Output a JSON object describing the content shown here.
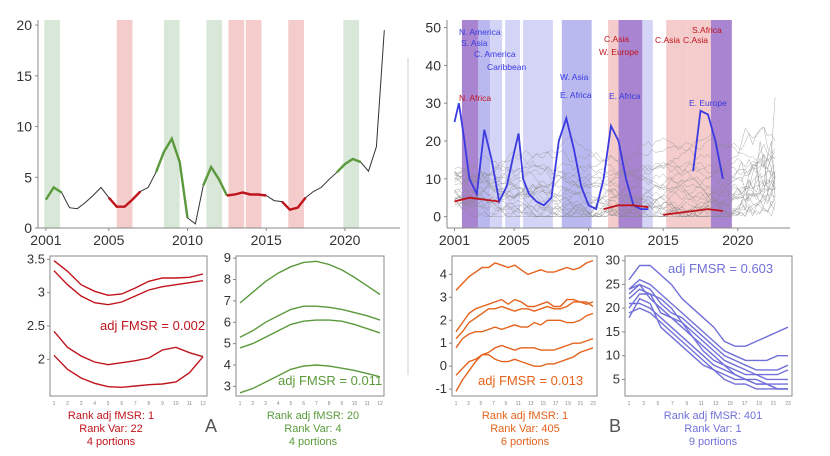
{
  "colors": {
    "red": "#c0141c",
    "green": "#5a9a3c",
    "orange": "#e4621b",
    "blue": "#3a3ae0",
    "lavender": "#7070d8",
    "gray": "#555555",
    "greenband": "#d9e7d9",
    "redband": "#f5cccc",
    "blueband1": "#b9b9f0",
    "blueband2": "#d4d4f6",
    "purpleband": "#9a6fc8"
  },
  "panel_letters": {
    "a": "A",
    "b": "B"
  },
  "captions": {
    "a1": {
      "rank": "Rank adj fMSR: 1",
      "var": "Rank Var: 22",
      "portions": "4 portions"
    },
    "a2": {
      "rank": "Rank adj fMSR: 20",
      "var": "Rank Var: 4",
      "portions": "4 portions"
    },
    "b1": {
      "rank": "Rank adj fMSR: 1",
      "var": "Rank Var: 405",
      "portions": "6 portions"
    },
    "b2": {
      "rank": "Rank adj fMSR: 401",
      "var": "Rank Var: 1",
      "portions": "9 portions"
    }
  },
  "chart_data": [
    {
      "id": "a-top",
      "type": "line",
      "xticks": [
        "2001",
        "2005",
        "2010",
        "2015",
        "2020"
      ],
      "yticks": [
        "0",
        "5",
        "10",
        "15",
        "20"
      ],
      "xlim": [
        2000.5,
        2023.5
      ],
      "ylim": [
        0,
        20.5
      ],
      "green_bands": [
        [
          2000.9,
          2001.9
        ],
        [
          2008.5,
          2009.5
        ],
        [
          2011.2,
          2012.2
        ],
        [
          2019.9,
          2020.9
        ]
      ],
      "red_bands": [
        [
          2005.5,
          2006.5
        ],
        [
          2012.6,
          2013.6
        ],
        [
          2013.7,
          2014.7
        ],
        [
          2016.4,
          2017.4
        ]
      ],
      "series": [
        {
          "x": [
            2001,
            2001.5,
            2002,
            2002.5,
            2003,
            2003.5,
            2004,
            2004.5,
            2005,
            2005.5,
            2006,
            2006.5,
            2007,
            2007.5,
            2008,
            2008.5,
            2009,
            2009.5,
            2010,
            2010.5,
            2011,
            2011.5,
            2012,
            2012.5,
            2013,
            2013.5,
            2014,
            2014.5,
            2015,
            2015.5,
            2016,
            2016.5,
            2017,
            2017.5,
            2018,
            2018.5,
            2019,
            2019.5,
            2020,
            2020.5,
            2021,
            2021.5,
            2022,
            2022.5
          ],
          "y": [
            2.8,
            4.0,
            3.5,
            2.0,
            1.9,
            2.5,
            3.2,
            4.0,
            3.0,
            2.1,
            2.1,
            2.8,
            3.6,
            4.0,
            5.5,
            7.5,
            8.8,
            6.5,
            1.0,
            0.4,
            4.2,
            6.0,
            4.8,
            3.2,
            3.3,
            3.5,
            3.3,
            3.3,
            3.2,
            2.7,
            2.6,
            1.8,
            2.0,
            3.0,
            3.6,
            4.0,
            4.8,
            5.5,
            6.3,
            6.8,
            6.5,
            5.6,
            8.0,
            19.5
          ]
        }
      ]
    },
    {
      "id": "a-left",
      "type": "line",
      "xticks": [
        "1",
        "2",
        "3",
        "4",
        "5",
        "6",
        "7",
        "8",
        "9",
        "10",
        "11",
        "12"
      ],
      "yticks": [
        "2",
        "2.5",
        "3",
        "3.5"
      ],
      "ylim": [
        1.45,
        3.55
      ],
      "annotation": "adj FMSR = 0.002",
      "series": [
        {
          "values": [
            3.48,
            3.32,
            3.12,
            3.02,
            2.96,
            2.98,
            3.07,
            3.17,
            3.22,
            3.22,
            3.23,
            3.28
          ]
        },
        {
          "values": [
            3.33,
            3.12,
            2.95,
            2.85,
            2.82,
            2.86,
            2.95,
            3.04,
            3.09,
            3.12,
            3.15,
            3.18
          ]
        },
        {
          "values": [
            2.42,
            2.18,
            2.05,
            1.96,
            1.92,
            1.95,
            1.98,
            2.02,
            2.14,
            2.18,
            2.1,
            2.04
          ]
        },
        {
          "values": [
            2.06,
            1.85,
            1.72,
            1.64,
            1.59,
            1.58,
            1.6,
            1.62,
            1.63,
            1.66,
            1.8,
            2.04
          ]
        }
      ]
    },
    {
      "id": "a-right",
      "type": "line",
      "xticks": [
        "1",
        "2",
        "3",
        "4",
        "5",
        "6",
        "7",
        "8",
        "9",
        "10",
        "11",
        "12"
      ],
      "yticks": [
        "3",
        "4",
        "5",
        "6",
        "7",
        "8",
        "9"
      ],
      "ylim": [
        2.55,
        9.1
      ],
      "annotation": "adj FMSR = 0.011",
      "series": [
        {
          "values": [
            6.9,
            7.4,
            7.9,
            8.3,
            8.6,
            8.8,
            8.85,
            8.7,
            8.45,
            8.1,
            7.7,
            7.3
          ]
        },
        {
          "values": [
            5.3,
            5.6,
            6.0,
            6.3,
            6.6,
            6.75,
            6.75,
            6.7,
            6.6,
            6.45,
            6.3,
            6.1
          ]
        },
        {
          "values": [
            4.8,
            5.0,
            5.3,
            5.6,
            5.9,
            6.05,
            6.1,
            6.1,
            6.05,
            5.9,
            5.7,
            5.5
          ]
        },
        {
          "values": [
            2.7,
            2.9,
            3.2,
            3.5,
            3.8,
            3.95,
            4.0,
            3.95,
            3.85,
            3.75,
            3.6,
            3.45
          ]
        }
      ]
    },
    {
      "id": "b-top",
      "type": "line",
      "xticks": [
        "2001",
        "2005",
        "2010",
        "2015",
        "2020"
      ],
      "yticks": [
        "0",
        "10",
        "20",
        "30",
        "40",
        "50"
      ],
      "xlim": [
        2000.5,
        2023.5
      ],
      "ylim": [
        -3,
        52
      ],
      "region_labels": [
        {
          "text": "N. America",
          "color": "blue"
        },
        {
          "text": "S. Asia",
          "color": "blue"
        },
        {
          "text": "C. America",
          "color": "blue"
        },
        {
          "text": "Caribbean",
          "color": "blue"
        },
        {
          "text": "N. Africa",
          "color": "red"
        },
        {
          "text": "W. Asia",
          "color": "blue"
        },
        {
          "text": "E. Africa",
          "color": "blue"
        },
        {
          "text": "C.Asia",
          "color": "red"
        },
        {
          "text": "W. Europe",
          "color": "red"
        },
        {
          "text": "E. Africa",
          "color": "blue"
        },
        {
          "text": "C.Asia",
          "color": "red"
        },
        {
          "text": "C.Asia",
          "color": "red"
        },
        {
          "text": "S.Africa",
          "color": "red"
        },
        {
          "text": "E. Europe",
          "color": "blue"
        }
      ],
      "series": [
        {
          "name": "blue",
          "x": [
            2001,
            2001.3,
            2001.6,
            2002,
            2002.5,
            2003,
            2003.5,
            2004,
            2004.5,
            2005,
            2005.3,
            2005.6,
            2006,
            2006.5,
            2007,
            2007.5,
            2008,
            2008.5,
            2009,
            2009.5,
            2010,
            2010.5,
            2011,
            2011.5,
            2012,
            2012.5,
            2013,
            2013.5,
            2014
          ],
          "y": [
            25,
            30,
            22,
            10,
            6,
            23,
            15,
            4,
            8,
            17,
            22,
            10,
            6,
            4,
            3,
            5,
            20,
            26,
            18,
            8,
            3,
            2,
            10,
            24,
            20,
            10,
            3,
            2,
            2
          ]
        },
        {
          "name": "blue",
          "x": [
            2017,
            2017.5,
            2018,
            2018.5,
            2019
          ],
          "y": [
            12,
            28,
            27,
            20,
            10
          ]
        },
        {
          "name": "red",
          "x": [
            2001,
            2002,
            2003,
            2004
          ],
          "y": [
            4,
            5,
            4.5,
            4
          ]
        },
        {
          "name": "red",
          "x": [
            2011,
            2012,
            2013,
            2014
          ],
          "y": [
            2,
            3,
            3,
            2.5
          ]
        },
        {
          "name": "red",
          "x": [
            2015,
            2016,
            2017,
            2018,
            2019
          ],
          "y": [
            0.5,
            1,
            1.5,
            2,
            1.5
          ]
        }
      ]
    },
    {
      "id": "b-left",
      "type": "line",
      "xticks": [
        "1",
        "3",
        "5",
        "7",
        "9",
        "11",
        "13",
        "15",
        "17",
        "19",
        "21",
        "23"
      ],
      "yticks": [
        "-1",
        "0",
        "1",
        "2",
        "3",
        "4"
      ],
      "ylim": [
        -1.3,
        4.8
      ],
      "annotation": "adj FMSR = 0.013",
      "series": [
        {
          "values": [
            3.3,
            3.6,
            3.9,
            4.1,
            4.3,
            4.3,
            4.5,
            4.4,
            4.3,
            4.4,
            4.2,
            4.0,
            4.1,
            4.2,
            4.1,
            4.1,
            4.2,
            4.3,
            4.2,
            4.3,
            4.5,
            4.6
          ]
        },
        {
          "values": [
            1.5,
            1.9,
            2.3,
            2.5,
            2.6,
            2.7,
            2.8,
            2.9,
            2.7,
            2.9,
            2.8,
            2.6,
            2.6,
            2.7,
            2.8,
            2.6,
            2.6,
            2.9,
            2.9,
            2.8,
            2.7,
            2.8
          ]
        },
        {
          "values": [
            1.2,
            1.5,
            1.9,
            2.1,
            2.3,
            2.5,
            2.5,
            2.6,
            2.5,
            2.4,
            2.5,
            2.5,
            2.4,
            2.5,
            2.6,
            2.5,
            2.5,
            2.6,
            2.8,
            2.8,
            2.8,
            2.6
          ]
        },
        {
          "values": [
            0.8,
            1.2,
            1.4,
            1.5,
            1.5,
            1.6,
            1.7,
            1.6,
            1.7,
            1.8,
            1.7,
            1.7,
            1.9,
            1.8,
            2.0,
            2.0,
            2.0,
            1.9,
            1.9,
            2.0,
            2.2,
            2.3
          ]
        },
        {
          "values": [
            -0.4,
            -0.1,
            0.2,
            0.3,
            0.5,
            0.5,
            0.3,
            0.2,
            0.2,
            0.3,
            0.2,
            0.1,
            0.0,
            0.0,
            0.1,
            0.1,
            0.2,
            0.3,
            0.4,
            0.6,
            0.7,
            0.8
          ]
        },
        {
          "values": [
            -1.1,
            -0.6,
            -0.2,
            0.2,
            0.5,
            0.6,
            0.8,
            0.9,
            0.8,
            0.7,
            0.8,
            0.8,
            0.8,
            0.7,
            0.7,
            0.7,
            0.8,
            0.9,
            1.0,
            1.0,
            1.1,
            1.2
          ]
        }
      ]
    },
    {
      "id": "b-right",
      "type": "line",
      "xticks": [
        "1",
        "3",
        "5",
        "7",
        "9",
        "11",
        "13",
        "15",
        "17",
        "19",
        "21",
        "23"
      ],
      "yticks": [
        "5",
        "10",
        "15",
        "20",
        "25",
        "30"
      ],
      "ylim": [
        1.5,
        31
      ],
      "annotation": "adj FMSR = 0.603",
      "series": [
        {
          "values": [
            26,
            29,
            29,
            27,
            25,
            22,
            20,
            18,
            16,
            13,
            12,
            12,
            13,
            14,
            15,
            16
          ]
        },
        {
          "values": [
            24,
            26,
            25,
            23,
            21,
            19,
            17,
            15,
            13,
            11,
            10,
            9,
            9,
            9,
            10,
            10
          ]
        },
        {
          "values": [
            23,
            25,
            24,
            21,
            19,
            18,
            16,
            14,
            12,
            10,
            9,
            8,
            7,
            7,
            7,
            8
          ]
        },
        {
          "values": [
            22,
            24,
            23,
            22,
            20,
            17,
            15,
            13,
            11,
            9,
            8,
            7,
            6,
            6,
            6,
            7
          ]
        },
        {
          "values": [
            20,
            23,
            23,
            19,
            18,
            17,
            14,
            12,
            10,
            8,
            7,
            6,
            6,
            5,
            5,
            5
          ]
        },
        {
          "values": [
            24,
            25,
            22,
            20,
            18,
            16,
            14,
            11,
            9,
            8,
            6,
            5,
            5,
            4,
            4,
            4
          ]
        },
        {
          "values": [
            21,
            21,
            20,
            18,
            16,
            14,
            12,
            10,
            8,
            7,
            6,
            5,
            4,
            4,
            3,
            3
          ]
        },
        {
          "values": [
            19,
            20,
            19,
            17,
            15,
            13,
            11,
            9,
            7,
            6,
            5,
            5,
            4,
            4,
            3,
            3
          ]
        },
        {
          "values": [
            18,
            22,
            21,
            16,
            14,
            12,
            10,
            8,
            7,
            5,
            4,
            4,
            3,
            3,
            3,
            3
          ]
        }
      ]
    }
  ]
}
